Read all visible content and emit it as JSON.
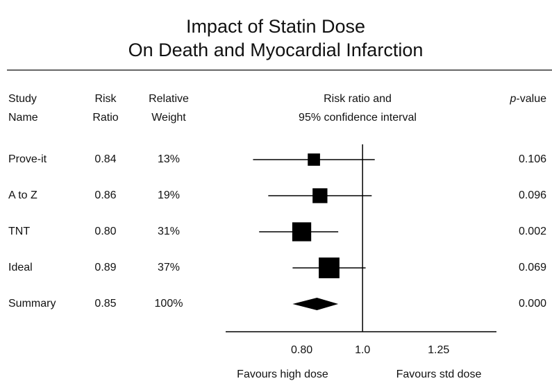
{
  "chart_data": {
    "type": "forest",
    "title": "Impact of Statin Dose",
    "subtitle": "On Death and Myocardial Infarction",
    "column_headers": [
      [
        "Study",
        "Name"
      ],
      [
        "Risk",
        "Ratio"
      ],
      [
        "Relative",
        "Weight"
      ],
      [
        "Risk ratio and",
        "95% confidence interval"
      ]
    ],
    "p_header": [
      "p",
      "-value"
    ],
    "studies": {
      "names": [
        "Prove-it",
        "A to Z",
        "TNT",
        "Ideal"
      ],
      "values": [
        0.84,
        0.86,
        0.8,
        0.89
      ],
      "value_labels": [
        "0.84",
        "0.86",
        "0.80",
        "0.89"
      ],
      "lower": [
        0.64,
        0.69,
        0.66,
        0.77
      ],
      "upper": [
        1.04,
        1.03,
        0.92,
        1.01
      ],
      "weights": [
        13,
        19,
        31,
        37
      ],
      "weight_labels": [
        "13%",
        "19%",
        "31%",
        "37%"
      ],
      "p_values": [
        "0.106",
        "0.096",
        "0.002",
        "0.069"
      ]
    },
    "summary": {
      "name": "Summary",
      "value": 0.85,
      "value_label": "0.85",
      "lower": 0.77,
      "upper": 0.92,
      "weight_label": "100%",
      "p_value": "0.000"
    },
    "reference": 1,
    "xlim": [
      0.55,
      1.44
    ],
    "xticks": [
      {
        "value": 0.8,
        "label": "0.80"
      },
      {
        "value": 1,
        "label": "1.0"
      },
      {
        "value": 1.25,
        "label": "1.25"
      }
    ],
    "left_label": "Favours high dose",
    "right_label": "Favours std dose",
    "color": "#000000"
  }
}
